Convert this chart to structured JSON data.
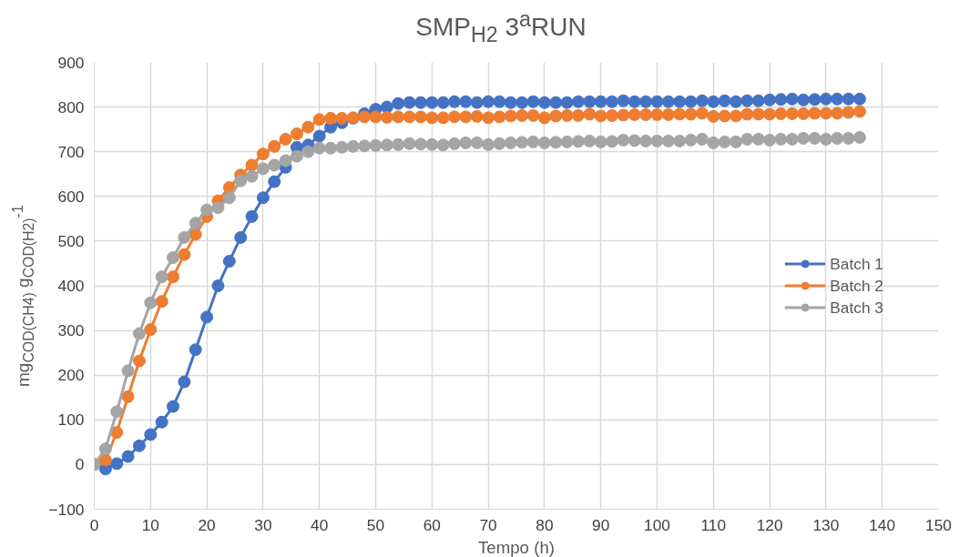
{
  "chart_data": {
    "type": "line",
    "title": "SMP$_{H2}$ 3$^{a}$RUN",
    "xlabel": "Tempo (h)",
    "ylabel": "mg$_{COD(CH4)}$ g$_{COD(H2)}$$^{-1}$",
    "x": [
      0,
      2,
      4,
      6,
      8,
      10,
      12,
      14,
      16,
      18,
      20,
      22,
      24,
      26,
      28,
      30,
      32,
      34,
      36,
      38,
      40,
      42,
      44,
      46,
      48,
      50,
      52,
      54,
      56,
      58,
      60,
      62,
      64,
      66,
      68,
      70,
      72,
      74,
      76,
      78,
      80,
      82,
      84,
      86,
      88,
      90,
      92,
      94,
      96,
      98,
      100,
      102,
      104,
      106,
      108,
      110,
      112,
      114,
      116,
      118,
      120,
      122,
      124,
      126,
      128,
      130,
      132,
      134,
      136
    ],
    "series": [
      {
        "name": "Batch 1",
        "color": "#4472c4",
        "values": [
          0,
          -10,
          2,
          18,
          42,
          67,
          95,
          130,
          185,
          257,
          330,
          400,
          455,
          508,
          555,
          597,
          633,
          665,
          710,
          715,
          735,
          755,
          765,
          775,
          785,
          795,
          800,
          808,
          810,
          810,
          810,
          810,
          812,
          812,
          810,
          812,
          812,
          810,
          810,
          812,
          810,
          810,
          810,
          812,
          812,
          812,
          812,
          814,
          812,
          812,
          812,
          812,
          812,
          812,
          814,
          812,
          814,
          812,
          814,
          814,
          816,
          817,
          818,
          816,
          817,
          818,
          818,
          818,
          818
        ]
      },
      {
        "name": "Batch 2",
        "color": "#ed7d31",
        "values": [
          0,
          10,
          72,
          152,
          232,
          302,
          365,
          420,
          470,
          515,
          555,
          590,
          620,
          648,
          670,
          695,
          712,
          728,
          740,
          755,
          772,
          775,
          775,
          776,
          778,
          778,
          777,
          778,
          778,
          778,
          776,
          776,
          778,
          778,
          779,
          776,
          778,
          780,
          781,
          781,
          776,
          780,
          781,
          781,
          784,
          780,
          781,
          782,
          783,
          783,
          783,
          783,
          784,
          784,
          786,
          779,
          780,
          780,
          784,
          784,
          784,
          785,
          785,
          785,
          786,
          786,
          786,
          788,
          790
        ]
      },
      {
        "name": "Batch 3",
        "color": "#a5a5a5",
        "values": [
          0,
          35,
          118,
          210,
          293,
          362,
          420,
          463,
          508,
          540,
          570,
          575,
          597,
          635,
          645,
          662,
          670,
          680,
          690,
          700,
          708,
          708,
          710,
          712,
          713,
          714,
          715,
          716,
          718,
          717,
          716,
          715,
          718,
          720,
          720,
          716,
          718,
          720,
          721,
          722,
          720,
          721,
          722,
          723,
          724,
          722,
          723,
          726,
          725,
          724,
          724,
          724,
          724,
          726,
          728,
          720,
          722,
          722,
          728,
          728,
          726,
          728,
          728,
          730,
          730,
          728,
          730,
          730,
          732
        ]
      }
    ],
    "xlim": [
      0,
      150
    ],
    "xticks": [
      0,
      10,
      20,
      30,
      40,
      50,
      60,
      70,
      80,
      90,
      100,
      110,
      120,
      130,
      140,
      150
    ],
    "ylim": [
      -100,
      900
    ],
    "yticks": [
      -100,
      0,
      100,
      200,
      300,
      400,
      500,
      600,
      700,
      800,
      900
    ],
    "grid": true,
    "legend": "right",
    "marker": "circle",
    "line_style": "solid"
  }
}
